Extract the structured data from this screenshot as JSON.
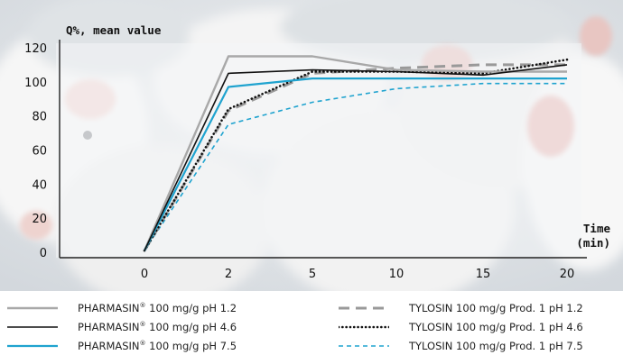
{
  "chart_data": {
    "type": "line",
    "ylabel": "Q%, mean value",
    "xlabel": "Time (min)",
    "xlabel_lines": [
      "Time",
      "(min)"
    ],
    "ylim": [
      0,
      120
    ],
    "yticks": [
      0,
      20,
      40,
      60,
      80,
      100,
      120
    ],
    "xticks": [
      0,
      2,
      5,
      10,
      15,
      20
    ],
    "grid": false,
    "legend_position": "bottom",
    "series": [
      {
        "name": "PHARMASIN 100 mg/g pH 1.2",
        "brand": "PHARMASIN",
        "rest": " 100 mg/g pH 1.2",
        "color": "#a8a8a8",
        "style": "solid",
        "x": [
          0,
          2,
          5,
          10,
          15,
          20
        ],
        "y": [
          1,
          115,
          115,
          107,
          106,
          106
        ]
      },
      {
        "name": "PHARMASIN 100 mg/g pH 4.6",
        "brand": "PHARMASIN",
        "rest": " 100 mg/g pH 4.6",
        "color": "#111111",
        "style": "solid",
        "x": [
          0,
          2,
          5,
          10,
          15,
          20
        ],
        "y": [
          1,
          105,
          107,
          106,
          104,
          110
        ]
      },
      {
        "name": "PHARMASIN 100 mg/g pH 7.5",
        "brand": "PHARMASIN",
        "rest": " 100 mg/g pH 7.5",
        "color": "#1fa3cf",
        "style": "solid",
        "x": [
          0,
          2,
          5,
          10,
          15,
          20
        ],
        "y": [
          1,
          97,
          102,
          102,
          102,
          102
        ]
      },
      {
        "name": "TYLOSIN 100 mg/g Prod. 1 pH 1.2",
        "brand": "TYLOSIN",
        "rest": " 100 mg/g Prod. 1 pH 1.2",
        "color": "#999999",
        "style": "dashed",
        "x": [
          0,
          2,
          5,
          10,
          15,
          20
        ],
        "y": [
          1,
          83,
          105,
          108,
          110,
          110
        ]
      },
      {
        "name": "TYLOSIN 100 mg/g Prod. 1 pH 4.6",
        "brand": "TYLOSIN",
        "rest": " 100 mg/g Prod. 1 pH 4.6",
        "color": "#111111",
        "style": "dotted",
        "x": [
          0,
          2,
          5,
          10,
          15,
          20
        ],
        "y": [
          1,
          84,
          106,
          106,
          105,
          113
        ]
      },
      {
        "name": "TYLOSIN 100 mg/g Prod. 1 pH 7.5",
        "brand": "TYLOSIN",
        "rest": " 100 mg/g Prod. 1 pH 7.5",
        "color": "#1fa3cf",
        "style": "dashed-fine",
        "x": [
          0,
          2,
          5,
          10,
          15,
          20
        ],
        "y": [
          1,
          75,
          88,
          96,
          99,
          99
        ]
      }
    ]
  }
}
